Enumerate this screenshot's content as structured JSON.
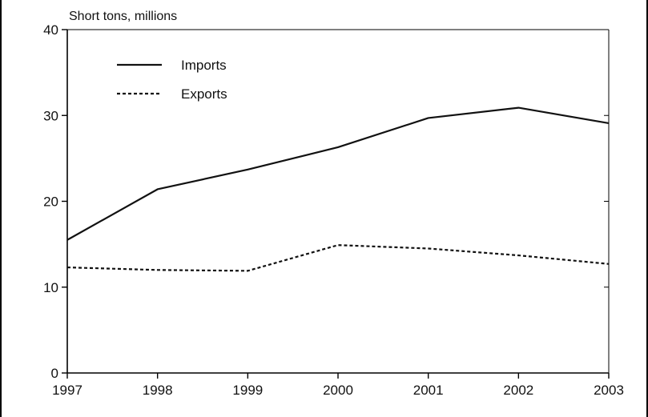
{
  "chart_data": {
    "type": "line",
    "title": "",
    "xlabel": "",
    "ylabel": "Short tons, millions",
    "x": [
      1997,
      1998,
      1999,
      2000,
      2001,
      2002,
      2003
    ],
    "x_tick_labels": [
      "1997",
      "1998",
      "1999",
      "2000",
      "2001",
      "2002",
      "2003"
    ],
    "ylim": [
      0,
      40
    ],
    "y_ticks": [
      0,
      10,
      20,
      30,
      40
    ],
    "y_tick_labels": [
      "0",
      "10",
      "20",
      "30",
      "40"
    ],
    "grid": false,
    "legend_position": "top-left",
    "series": [
      {
        "name": "Imports",
        "style": "solid",
        "color": "#111111",
        "values": [
          15.5,
          21.4,
          23.7,
          26.3,
          29.7,
          30.9,
          29.1
        ]
      },
      {
        "name": "Exports",
        "style": "dashed",
        "color": "#111111",
        "values": [
          12.3,
          12.0,
          11.9,
          14.9,
          14.5,
          13.7,
          12.7
        ]
      }
    ]
  }
}
